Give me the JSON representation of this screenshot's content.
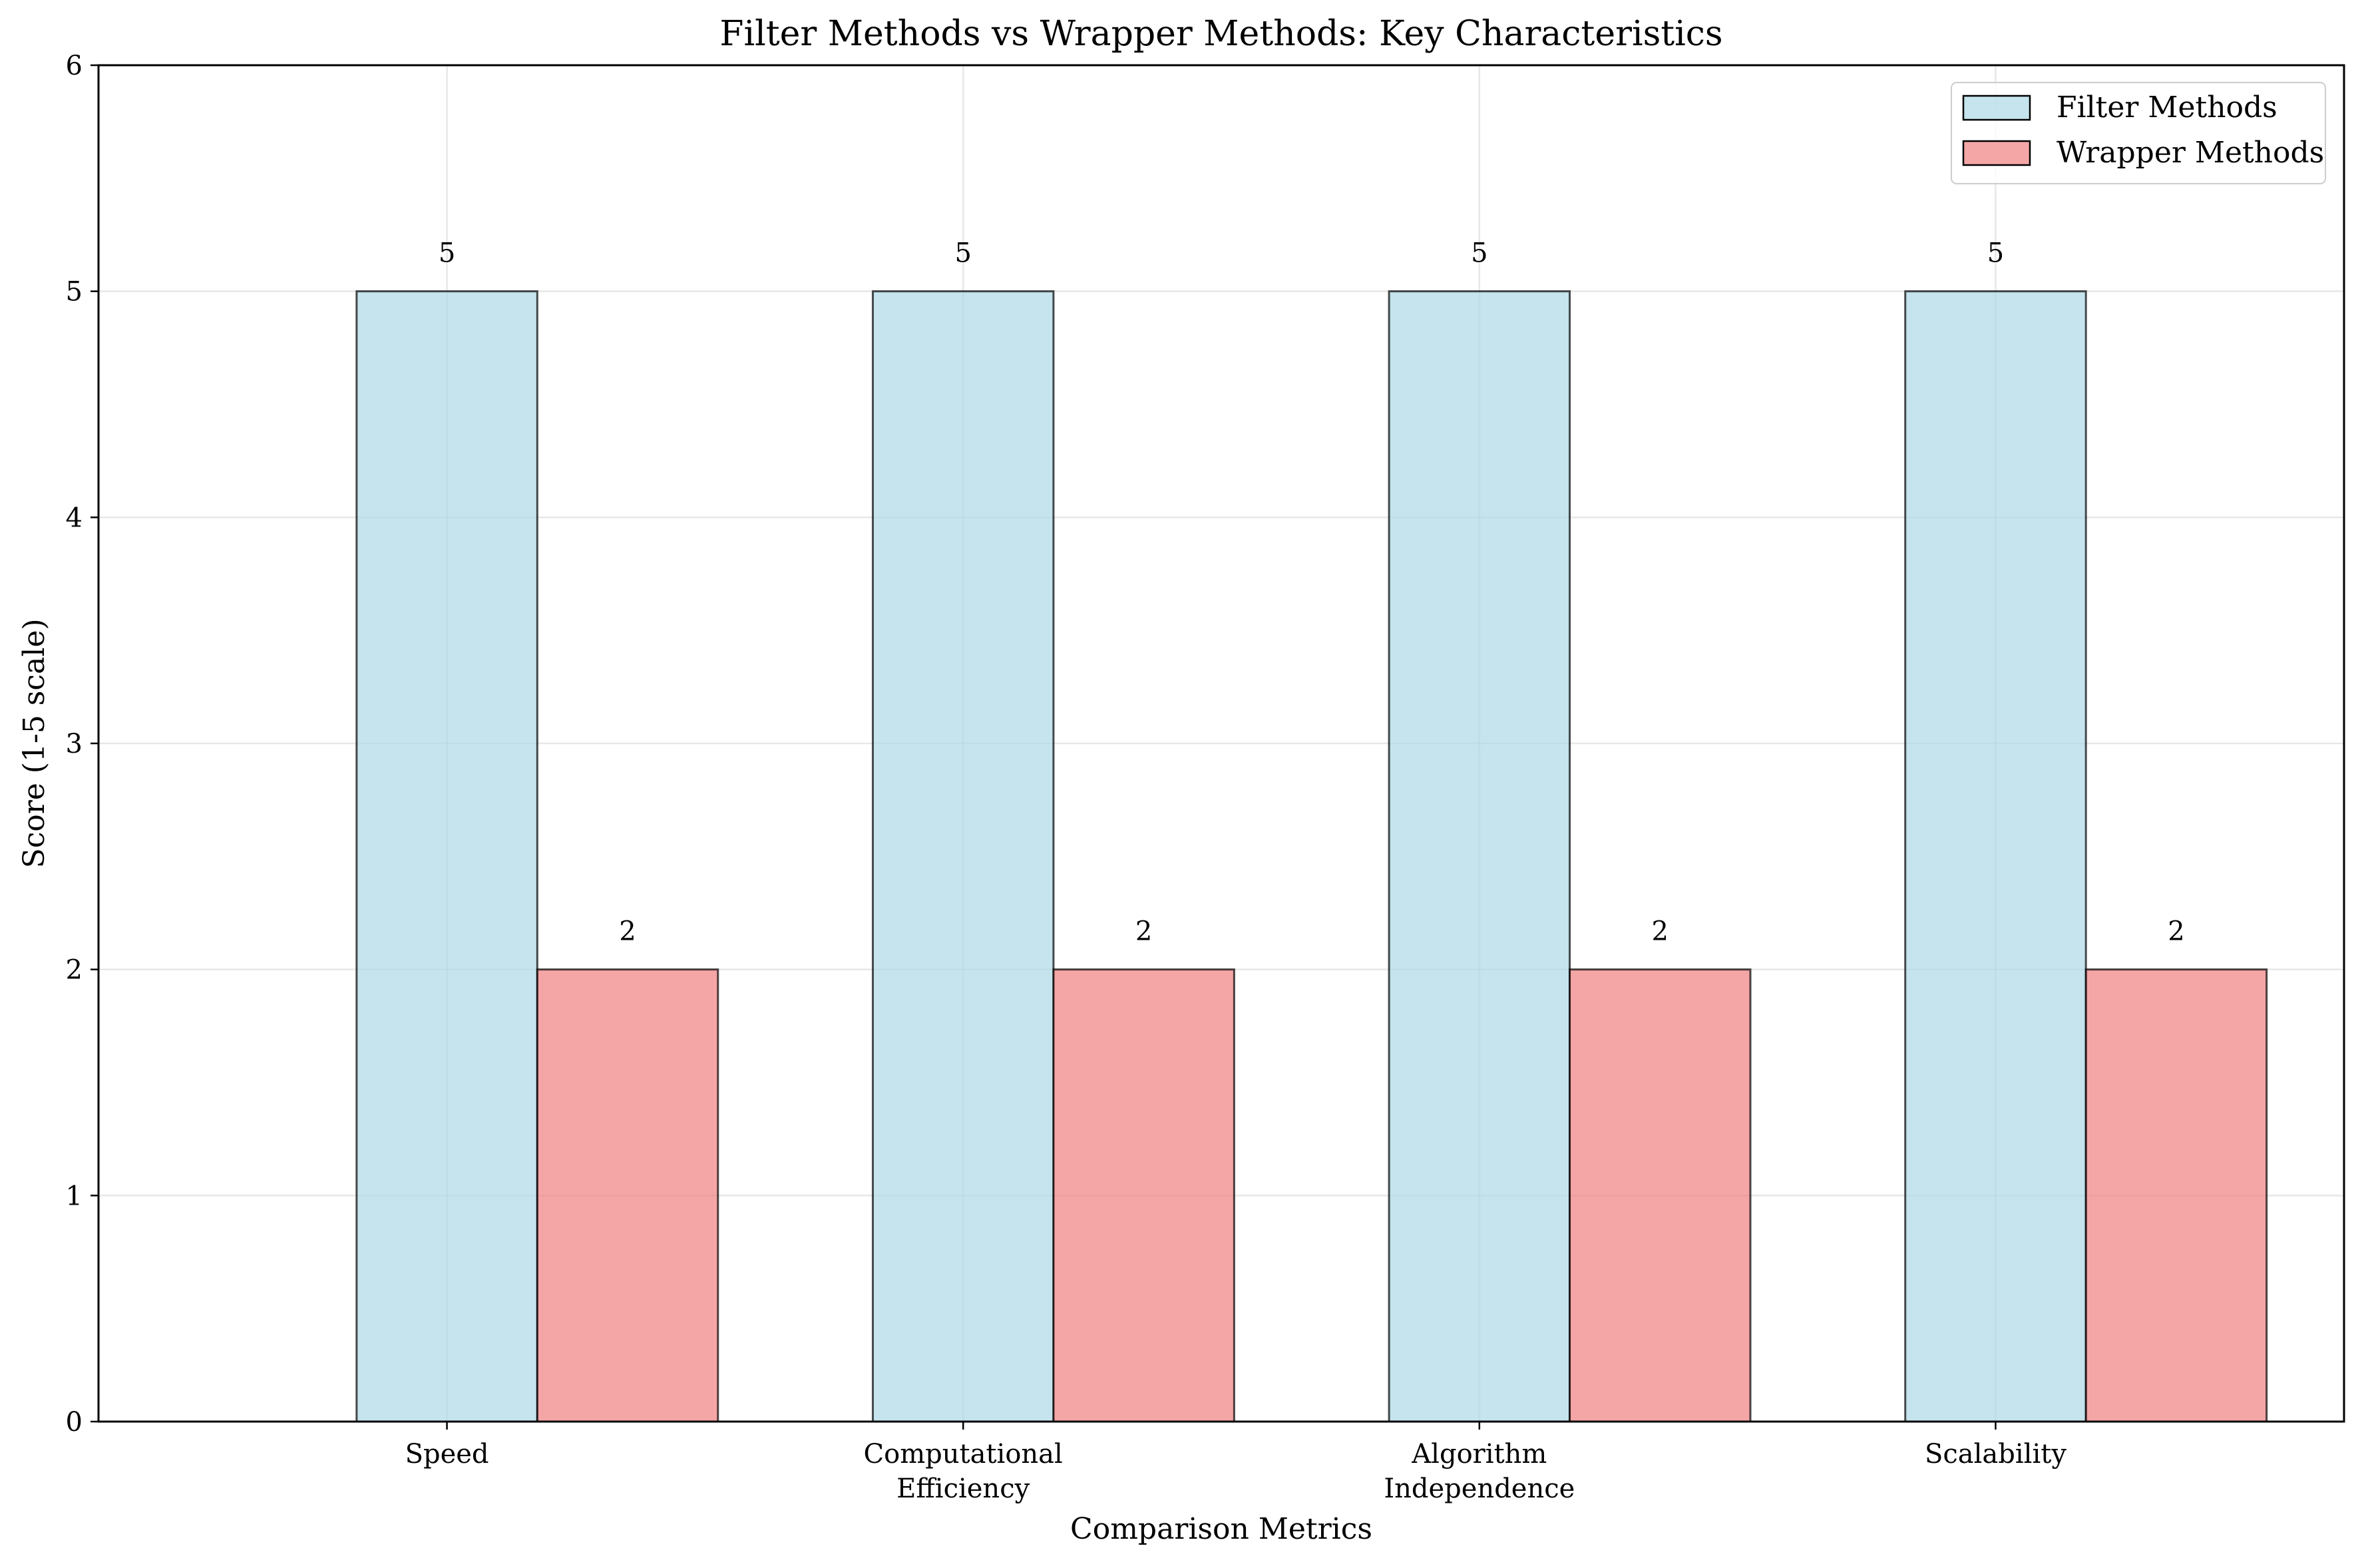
{
  "chart_data": {
    "type": "bar",
    "title": "Filter Methods vs Wrapper Methods: Key Characteristics",
    "xlabel": "Comparison Metrics",
    "ylabel": "Score (1-5 scale)",
    "categories": [
      [
        "Speed"
      ],
      [
        "Computational",
        "Efficiency"
      ],
      [
        "Algorithm",
        "Independence"
      ],
      [
        "Scalability"
      ]
    ],
    "series": [
      {
        "name": "Filter Methods",
        "values": [
          5,
          5,
          5,
          5
        ],
        "color": "#add8e6"
      },
      {
        "name": "Wrapper Methods",
        "values": [
          2,
          2,
          2,
          2
        ],
        "color": "#f08080"
      }
    ],
    "ylim": [
      0,
      6
    ],
    "yticks": [
      "0",
      "1",
      "2",
      "3",
      "4",
      "5",
      "6"
    ],
    "data_labels": [
      [
        "5",
        "5",
        "5",
        "5"
      ],
      [
        "2",
        "2",
        "2",
        "2"
      ]
    ],
    "grid": true,
    "legend_position": "top-right",
    "bar_alpha": 0.7,
    "edge_color": "#000000"
  }
}
